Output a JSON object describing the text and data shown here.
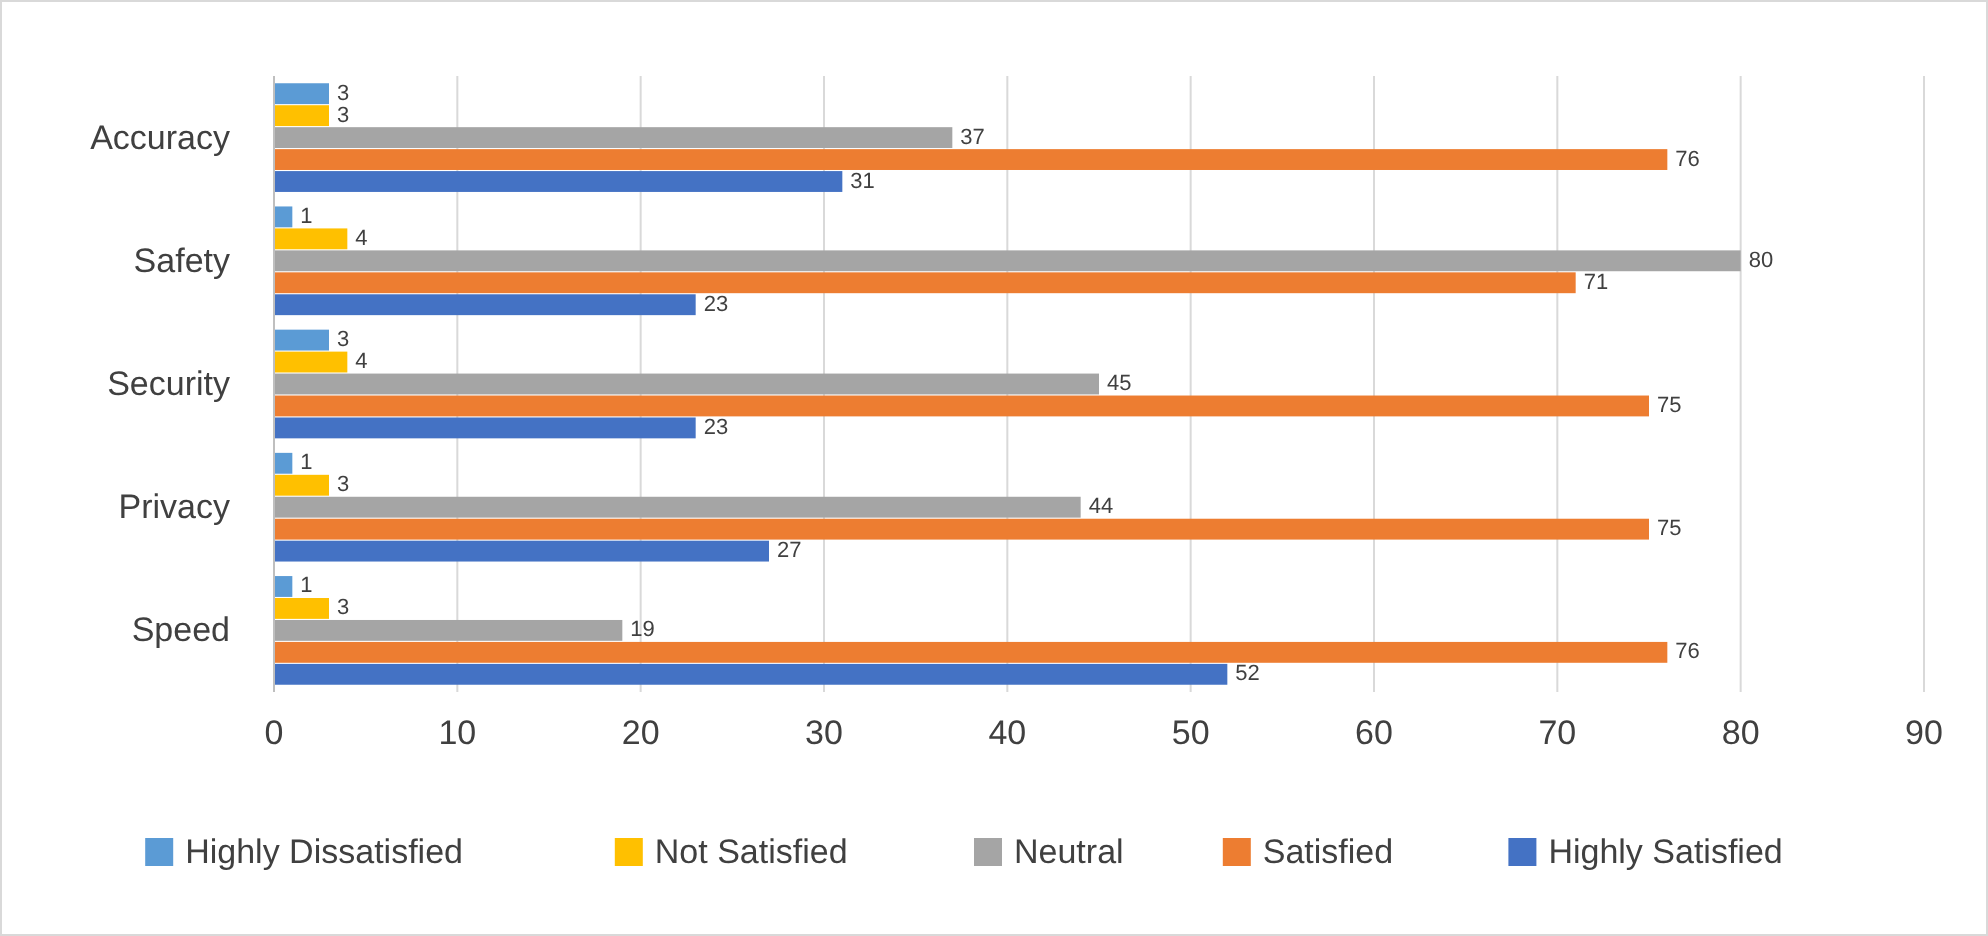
{
  "chart_data": {
    "type": "bar",
    "orientation": "horizontal",
    "categories": [
      "Accuracy",
      "Safety",
      "Security",
      "Privacy",
      "Speed"
    ],
    "series": [
      {
        "name": "Highly Dissatisfied",
        "color": "#5b9bd5",
        "values": [
          3,
          1,
          3,
          1,
          1
        ]
      },
      {
        "name": "Not Satisfied",
        "color": "#ffc000",
        "values": [
          3,
          4,
          4,
          3,
          3
        ]
      },
      {
        "name": "Neutral",
        "color": "#a5a5a5",
        "values": [
          37,
          80,
          45,
          44,
          19
        ]
      },
      {
        "name": "Satisfied",
        "color": "#ed7d31",
        "values": [
          76,
          71,
          75,
          75,
          76
        ]
      },
      {
        "name": "Highly Satisfied",
        "color": "#4472c4",
        "values": [
          31,
          23,
          23,
          27,
          52
        ]
      }
    ],
    "xlim": [
      0,
      90
    ],
    "xticks": [
      0,
      10,
      20,
      30,
      40,
      50,
      60,
      70,
      80,
      90
    ],
    "grid": "x",
    "legend": "bottom",
    "data_labels": true
  }
}
